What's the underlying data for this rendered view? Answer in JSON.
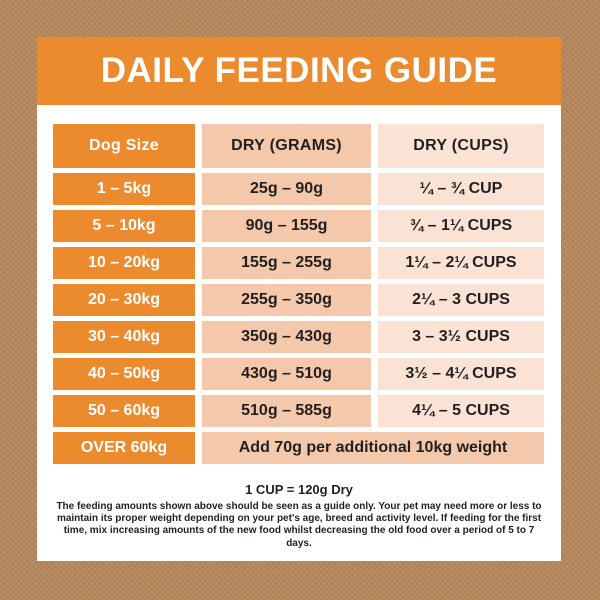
{
  "title": "DAILY FEEDING GUIDE",
  "colors": {
    "background_brown": "#b5885c",
    "accent_orange": "#ec8a2e",
    "peach_mid": "#f3c8ab",
    "peach_light": "#fae3d4",
    "text_dark": "#231f20",
    "card_white": "#ffffff"
  },
  "table": {
    "headers": [
      "Dog Size",
      "DRY (GRAMS)",
      "DRY (CUPS)"
    ],
    "rows": [
      {
        "size": "1 – 5kg",
        "grams": "25g – 90g",
        "cups": "¼ – ¾ CUP"
      },
      {
        "size": "5 – 10kg",
        "grams": "90g – 155g",
        "cups": "¾ – 1¼ CUPS"
      },
      {
        "size": "10 – 20kg",
        "grams": "155g – 255g",
        "cups": "1¼ – 2¼ CUPS"
      },
      {
        "size": "20 – 30kg",
        "grams": "255g – 350g",
        "cups": "2¼ – 3 CUPS"
      },
      {
        "size": "30 – 40kg",
        "grams": "350g – 430g",
        "cups": "3 – 3½ CUPS"
      },
      {
        "size": "40 – 50kg",
        "grams": "430g – 510g",
        "cups": "3½ – 4¼ CUPS"
      },
      {
        "size": "50 – 60kg",
        "grams": "510g – 585g",
        "cups": "4¼ – 5 CUPS"
      }
    ],
    "last_row": {
      "size": "OVER 60kg",
      "note": "Add 70g per additional 10kg weight"
    }
  },
  "footer": {
    "cup_note": "1 CUP = 120g Dry",
    "disclaimer": "The feeding amounts shown above should be seen as a guide only. Your pet may need more or less to maintain its proper weight depending on your pet's age, breed and activity level. If feeding for the first time, mix increasing amounts of the new food whilst decreasing the old food over a period of 5 to 7 days."
  },
  "chart_data": {
    "type": "table",
    "title": "DAILY FEEDING GUIDE",
    "columns": [
      "Dog Size",
      "DRY (GRAMS)",
      "DRY (CUPS)"
    ],
    "rows": [
      [
        "1 – 5kg",
        "25g – 90g",
        "¼ – ¾ CUP"
      ],
      [
        "5 – 10kg",
        "90g – 155g",
        "¾ – 1¼ CUPS"
      ],
      [
        "10 – 20kg",
        "155g – 255g",
        "1¼ – 2¼ CUPS"
      ],
      [
        "20 – 30kg",
        "255g – 350g",
        "2¼ – 3 CUPS"
      ],
      [
        "30 – 40kg",
        "350g – 430g",
        "3 – 3½ CUPS"
      ],
      [
        "40 – 50kg",
        "430g – 510g",
        "3½ – 4¼ CUPS"
      ],
      [
        "50 – 60kg",
        "510g – 585g",
        "4¼ – 5 CUPS"
      ],
      [
        "OVER 60kg",
        "Add 70g per additional 10kg weight",
        ""
      ]
    ],
    "notes": [
      "1 CUP = 120g Dry",
      "The feeding amounts shown above should be seen as a guide only. Your pet may need more or less to maintain its proper weight depending on your pet's age, breed and activity level. If feeding for the first time, mix increasing amounts of the new food whilst decreasing the old food over a period of 5 to 7 days."
    ]
  }
}
